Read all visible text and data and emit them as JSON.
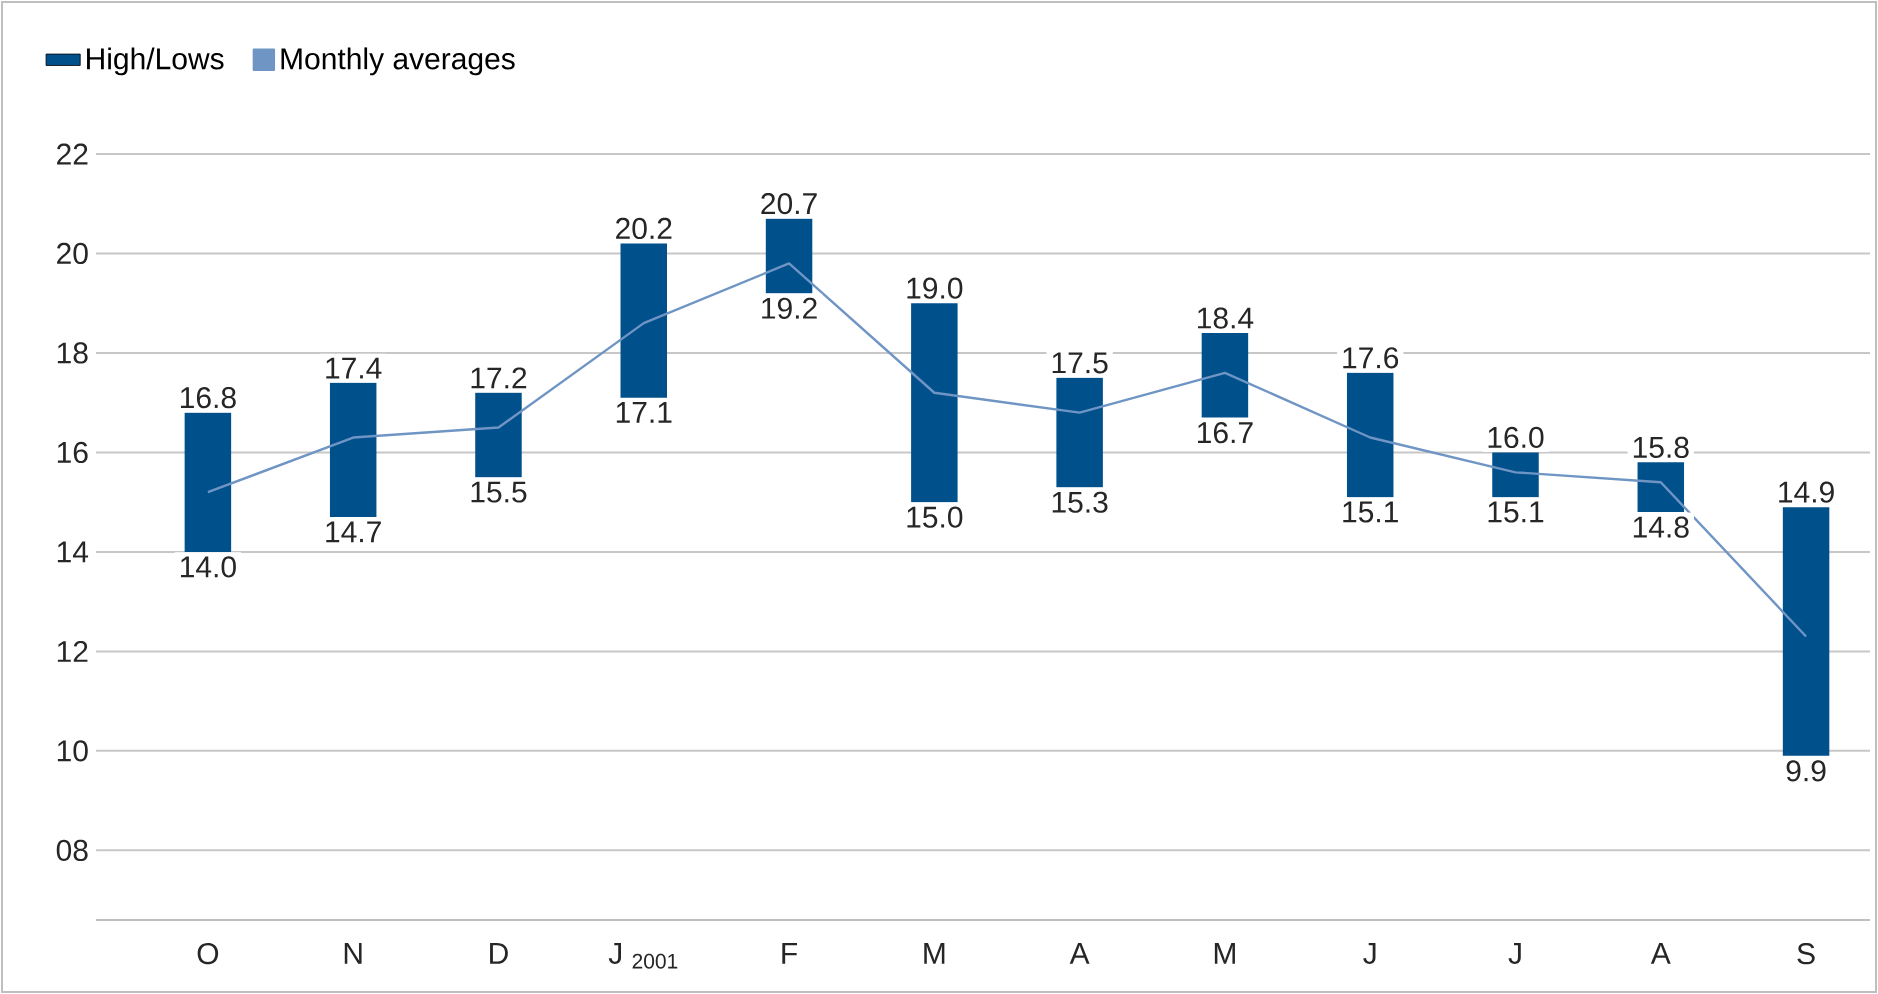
{
  "chart_data": {
    "type": "bar",
    "categories": [
      "O",
      "N",
      "D",
      "J $_{2001}$",
      "F",
      "M",
      "A",
      "M",
      "J",
      "J",
      "A",
      "S"
    ],
    "series": [
      {
        "name": "High/Lows",
        "color": "#00508c",
        "base": [
          14.0,
          14.7,
          15.5,
          17.1,
          19.2,
          15.0,
          15.3,
          16.7,
          15.1,
          15.1,
          14.8,
          9.9
        ],
        "values": [
          2.8,
          2.7,
          1.7,
          3.1,
          1.5,
          4.0,
          2.2,
          1.7,
          2.5,
          0.9,
          1.0,
          5.0
        ]
      },
      {
        "name": "Monthly averages",
        "type": "line",
        "color": "#6f95c4",
        "values": [
          15.2,
          16.3,
          16.5,
          18.6,
          19.8,
          17.2,
          16.8,
          17.6,
          16.3,
          15.6,
          15.4,
          12.3
        ]
      }
    ],
    "ylim": [
      6.6,
      22
    ],
    "yticks": [
      {
        "value": 8,
        "label": "08"
      },
      10,
      12,
      14,
      16,
      18,
      20,
      22
    ],
    "grid": "y",
    "legend": "top left",
    "annotations": [
      {
        "text": "16.8",
        "x": "O",
        "y": 16.8
      },
      {
        "text": "14.0",
        "x": "O",
        "y": 14.0
      },
      {
        "text": "17.4",
        "x": "N",
        "y": 17.4
      },
      {
        "text": "14.7",
        "x": "N",
        "y": 14.7
      },
      {
        "text": "17.2",
        "x": "D",
        "y": 17.2
      },
      {
        "text": "15.5",
        "x": "D",
        "y": 15.5
      },
      {
        "text": "20.2",
        "x": "J $_{2001}$",
        "y": 20.2
      },
      {
        "text": "17.1",
        "x": "J $_{2001}$",
        "y": 17.1
      },
      {
        "text": "20.7",
        "x": "F",
        "y": 20.7
      },
      {
        "text": "19.2",
        "x": "F",
        "y": 19.2
      },
      {
        "text": "19.0",
        "x": "M",
        "y": 19.0
      },
      {
        "text": "15.0",
        "x": "M",
        "y": 15.0
      },
      {
        "text": "17.5",
        "x": "A",
        "y": 17.5
      },
      {
        "text": "15.3",
        "x": "A",
        "y": 15.3
      },
      "18.4",
      "16.7",
      {
        "text": "17.6",
        "x": "J",
        "y": 17.6
      },
      {
        "text": "15.1",
        "x": "J",
        "y": 15.1
      },
      "16.0",
      "15.1",
      "15.8",
      "14.8",
      {
        "text": "14.9",
        "x": "S",
        "y": 14.9
      },
      {
        "text": "9.9",
        "x": "S",
        "y": 9.9
      }
    ]
  }
}
